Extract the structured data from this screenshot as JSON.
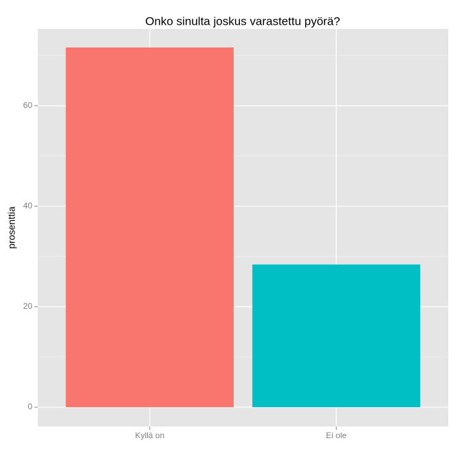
{
  "chart_data": {
    "type": "bar",
    "title": "Onko sinulta joskus varastettu pyörä?",
    "y_label": "prosenttia",
    "categories": [
      "Kyllä on",
      "Ei ole"
    ],
    "values": [
      71.6,
      28.4
    ],
    "colors": [
      "#F8766D",
      "#00BFC4"
    ],
    "ylim": [
      -3.84,
      75.3
    ],
    "yticks": [
      0,
      20,
      40,
      60
    ],
    "minor_yticks": [
      10,
      30,
      50,
      70
    ],
    "grid": true
  }
}
